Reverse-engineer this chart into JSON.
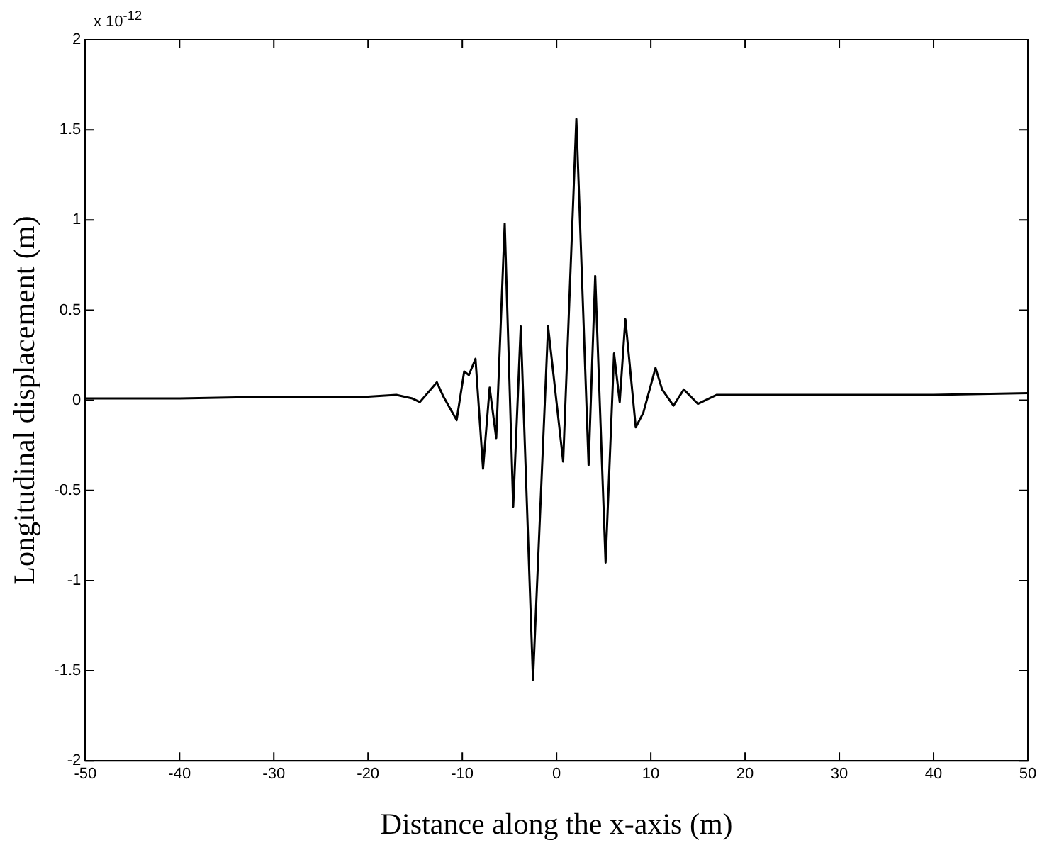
{
  "chart_data": {
    "type": "line",
    "xlabel": "Distance along the x-axis (m)",
    "ylabel": "Longitudinal displacement (m)",
    "annotations": [
      "x 10$^{-12}$"
    ],
    "xlim": [
      -50,
      50
    ],
    "xticks": [
      -50,
      -40,
      -30,
      -20,
      -10,
      0,
      10,
      20,
      30,
      40,
      50
    ],
    "ylim": [
      -2,
      2
    ],
    "yticks": [
      -2,
      -1.5,
      -1,
      -0.5,
      0,
      0.5,
      1,
      1.5,
      2
    ],
    "grid": false,
    "legend": false,
    "marker": "none",
    "line_style": "solid",
    "series": [
      {
        "color": "#000000",
        "x": [
          -50,
          -40,
          -30,
          -25.6,
          -20,
          -17,
          -15.3,
          -14.5,
          -12.7,
          -12,
          -10.6,
          -9.8,
          -9.3,
          -8.6,
          -7.8,
          -7.1,
          -6.4,
          -5.5,
          -4.6,
          -3.8,
          -2.5,
          -0.9,
          0.7,
          2.1,
          3.4,
          4.1,
          5.2,
          6.1,
          6.7,
          7.3,
          8.4,
          9.2,
          10.5,
          11.2,
          12.4,
          13.5,
          15,
          17,
          20,
          30,
          40,
          50
        ],
        "values": [
          0.01,
          0.01,
          0.02,
          0.02,
          0.02,
          0.03,
          0.01,
          -0.01,
          0.1,
          0.02,
          -0.11,
          0.16,
          0.14,
          0.23,
          -0.38,
          0.07,
          -0.21,
          0.98,
          -0.59,
          0.41,
          -1.55,
          0.41,
          -0.34,
          1.56,
          -0.36,
          0.69,
          -0.9,
          0.26,
          -0.01,
          0.45,
          -0.15,
          -0.07,
          0.18,
          0.06,
          -0.03,
          0.06,
          -0.02,
          0.03,
          0.03,
          0.03,
          0.03,
          0.04
        ]
      }
    ]
  }
}
